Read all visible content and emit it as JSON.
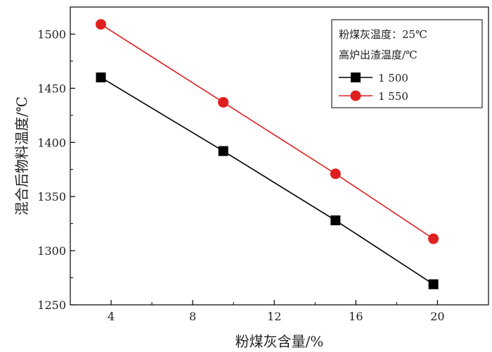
{
  "chart_data": {
    "type": "line",
    "xlabel": "粉煤灰含量/%",
    "ylabel": "混合后物料温度/℃",
    "xlim": [
      2,
      22.5
    ],
    "ylim": [
      1250,
      1525
    ],
    "xticks": [
      4,
      8,
      12,
      16,
      20
    ],
    "yticks": [
      1250,
      1300,
      1350,
      1400,
      1450,
      1500
    ],
    "grid": false,
    "legend": {
      "placement": "top-right",
      "header_lines": [
        "粉煤灰温度：25℃",
        "高炉出渣温度/℃"
      ],
      "entries": [
        "1 500",
        "1 550"
      ]
    },
    "series": [
      {
        "name": "1 500",
        "color": "#000000",
        "marker": "square",
        "x": [
          3.5,
          9.5,
          15.0,
          19.8
        ],
        "y": [
          1460,
          1392,
          1328,
          1269
        ]
      },
      {
        "name": "1 550",
        "color": "#e02020",
        "marker": "circle",
        "x": [
          3.5,
          9.5,
          15.0,
          19.8
        ],
        "y": [
          1509,
          1437,
          1371,
          1311
        ]
      }
    ]
  }
}
